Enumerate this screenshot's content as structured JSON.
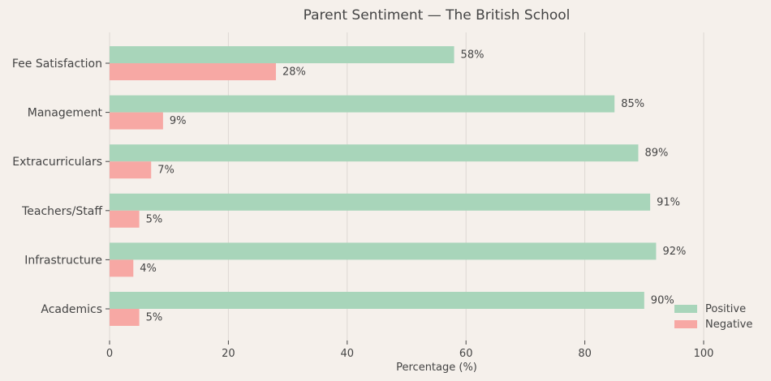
{
  "chart_data": {
    "type": "bar",
    "orientation": "horizontal",
    "title": "Parent Sentiment — The British School",
    "xlabel": "Percentage (%)",
    "ylabel": "",
    "xlim": [
      0,
      110
    ],
    "xticks": [
      0,
      20,
      40,
      60,
      80,
      100
    ],
    "grid": true,
    "legend_position": "lower-right",
    "categories": [
      "Fee Satisfaction",
      "Management",
      "Extracurriculars",
      "Teachers/Staff",
      "Infrastructure",
      "Academics"
    ],
    "series": [
      {
        "name": "Positive",
        "color": "#a8d5ba",
        "values": [
          58,
          85,
          89,
          91,
          92,
          90
        ]
      },
      {
        "name": "Negative",
        "color": "#f7a8a4",
        "values": [
          28,
          9,
          7,
          5,
          4,
          5
        ]
      }
    ],
    "background": "#f5f0eb"
  }
}
